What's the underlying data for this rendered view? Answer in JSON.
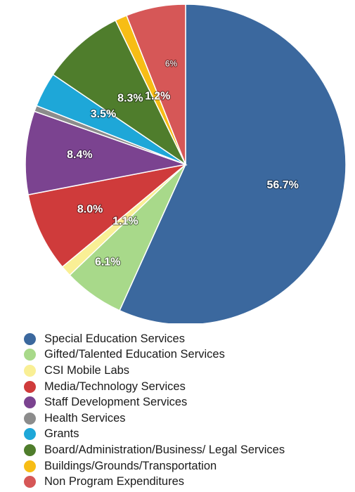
{
  "chart_data": {
    "type": "pie",
    "title": "",
    "slices": [
      {
        "name": "Special Education Services",
        "value": 56.7,
        "label": "56.7%",
        "color": "#3b689e"
      },
      {
        "name": "Gifted/Talented Education Services",
        "value": 6.1,
        "label": "6.1%",
        "color": "#a8d98a"
      },
      {
        "name": "CSI Mobile Labs",
        "value": 1.1,
        "label": "1.1%",
        "color": "#f9ef95"
      },
      {
        "name": "Media/Technology Services",
        "value": 8.0,
        "label": "8.0%",
        "color": "#cf3b3b"
      },
      {
        "name": "Staff Development Services",
        "value": 8.4,
        "label": "8.4%",
        "color": "#7b4390"
      },
      {
        "name": "Health Services",
        "value": 0.6,
        "label": "",
        "color": "#8c8c8c"
      },
      {
        "name": "Grants",
        "value": 3.5,
        "label": "3.5%",
        "color": "#1ea7d8"
      },
      {
        "name": "Board/Administration/Business/ Legal Services",
        "value": 8.3,
        "label": "8.3%",
        "color": "#4f7d2c"
      },
      {
        "name": "Buildings/Grounds/Transportation",
        "value": 1.2,
        "label": "1.2%",
        "color": "#f7bd15"
      },
      {
        "name": "Non Program Expenditures",
        "value": 6.0,
        "label": "6%",
        "color": "#d65757"
      }
    ],
    "legend_position": "bottom"
  }
}
